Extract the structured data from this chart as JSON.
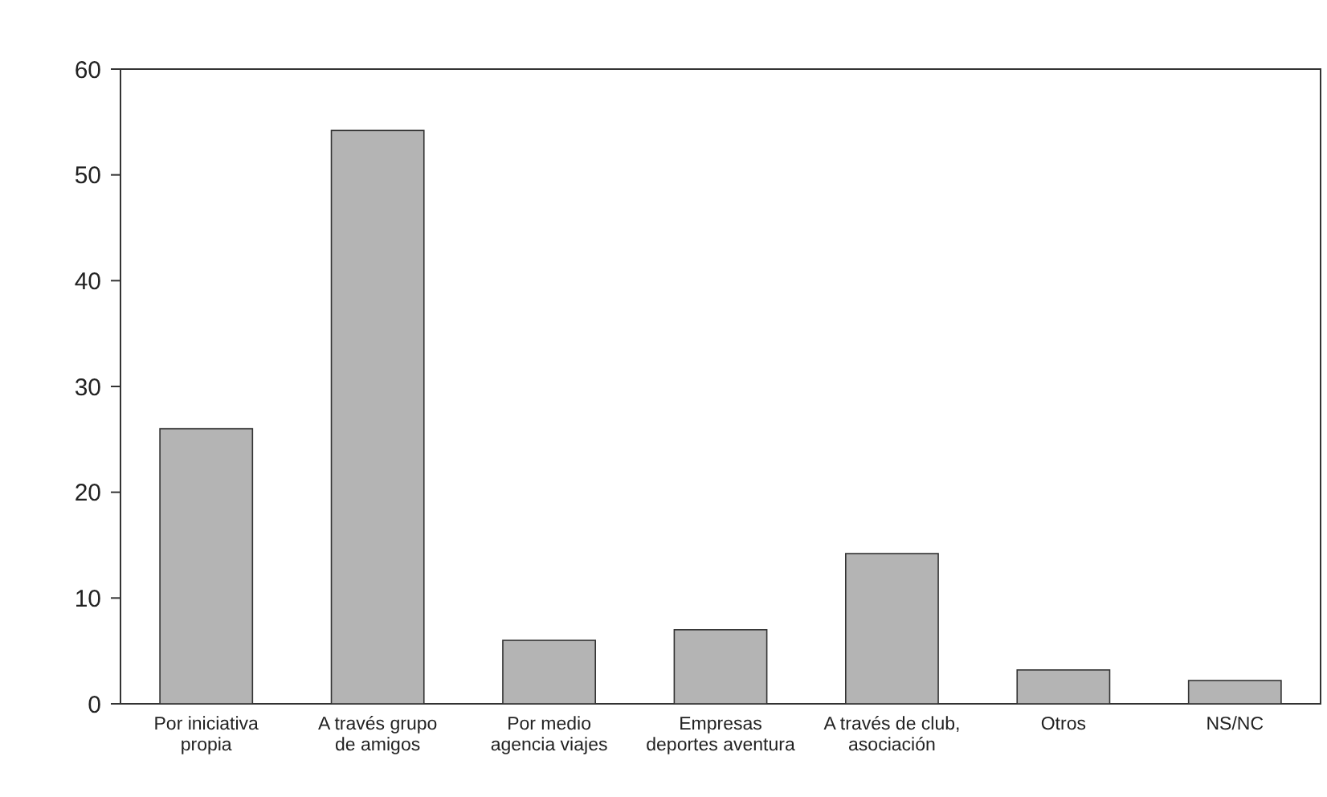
{
  "chart_data": {
    "type": "bar",
    "categories": [
      "Por iniciativa\npropia",
      "A través grupo\nde amigos",
      "Por medio\nagencia viajes",
      "Empresas\ndeportes aventura",
      "A través de club,\nasociación",
      "Otros",
      "NS/NC"
    ],
    "values": [
      26,
      54.2,
      6,
      7,
      14.2,
      3.2,
      2.2
    ],
    "color": "#b4b4b4",
    "ylim": [
      0,
      60
    ],
    "yticks": [
      0,
      10,
      20,
      30,
      40,
      50,
      60
    ],
    "grid": false
  }
}
